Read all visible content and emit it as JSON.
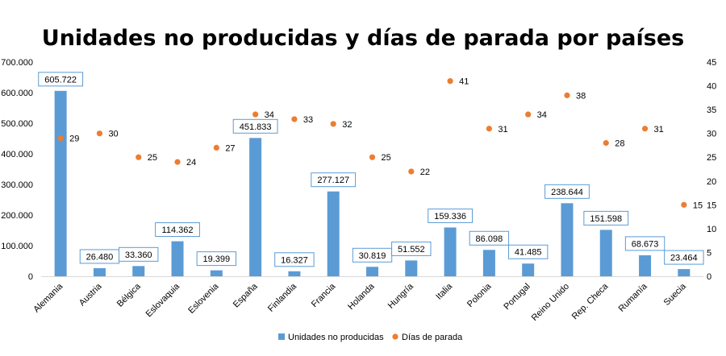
{
  "chart_data": {
    "type": "bar+scatter",
    "title": "Unidades no producidas y días de parada por países",
    "categories": [
      "Alemania",
      "Austria",
      "Bélgica",
      "Eslovaquia",
      "Eslovenia",
      "España",
      "Finlandia",
      "Francia",
      "Holanda",
      "Hungría",
      "Italia",
      "Polonia",
      "Portugal",
      "Reino Unido",
      "Rep. Checa",
      "Rumanía",
      "Suecia"
    ],
    "series": [
      {
        "name": "Unidades no producidas",
        "type": "bar",
        "axis": "left",
        "color": "#5b9bd5",
        "values": [
          605722,
          26480,
          33360,
          114362,
          19399,
          451833,
          16327,
          277127,
          30819,
          51552,
          159336,
          86098,
          41485,
          238644,
          151598,
          68673,
          23464
        ],
        "labels": [
          "605.722",
          "26.480",
          "33.360",
          "114.362",
          "19.399",
          "451.833",
          "16.327",
          "277.127",
          "30.819",
          "51.552",
          "159.336",
          "86.098",
          "41.485",
          "238.644",
          "151.598",
          "68.673",
          "23.464"
        ]
      },
      {
        "name": "Días de parada",
        "type": "scatter",
        "axis": "right",
        "color": "#ed7d31",
        "values": [
          29,
          30,
          25,
          24,
          27,
          34,
          33,
          32,
          25,
          22,
          41,
          31,
          34,
          38,
          28,
          31,
          15
        ],
        "labels": [
          "29",
          "30",
          "25",
          "24",
          "27",
          "34",
          "33",
          "32",
          "25",
          "22",
          "41",
          "31",
          "34",
          "38",
          "28",
          "31",
          "15"
        ]
      }
    ],
    "y_left": {
      "min": 0,
      "max": 700000,
      "ticks": [
        "0",
        "100.000",
        "200.000",
        "300.000",
        "400.000",
        "500.000",
        "600.000",
        "700.000"
      ]
    },
    "y_right": {
      "min": 0,
      "max": 45,
      "ticks": [
        "0",
        "5",
        "10",
        "15",
        "20",
        "25",
        "30",
        "35",
        "40",
        "45"
      ]
    },
    "legend_position": "bottom",
    "grid": false
  }
}
